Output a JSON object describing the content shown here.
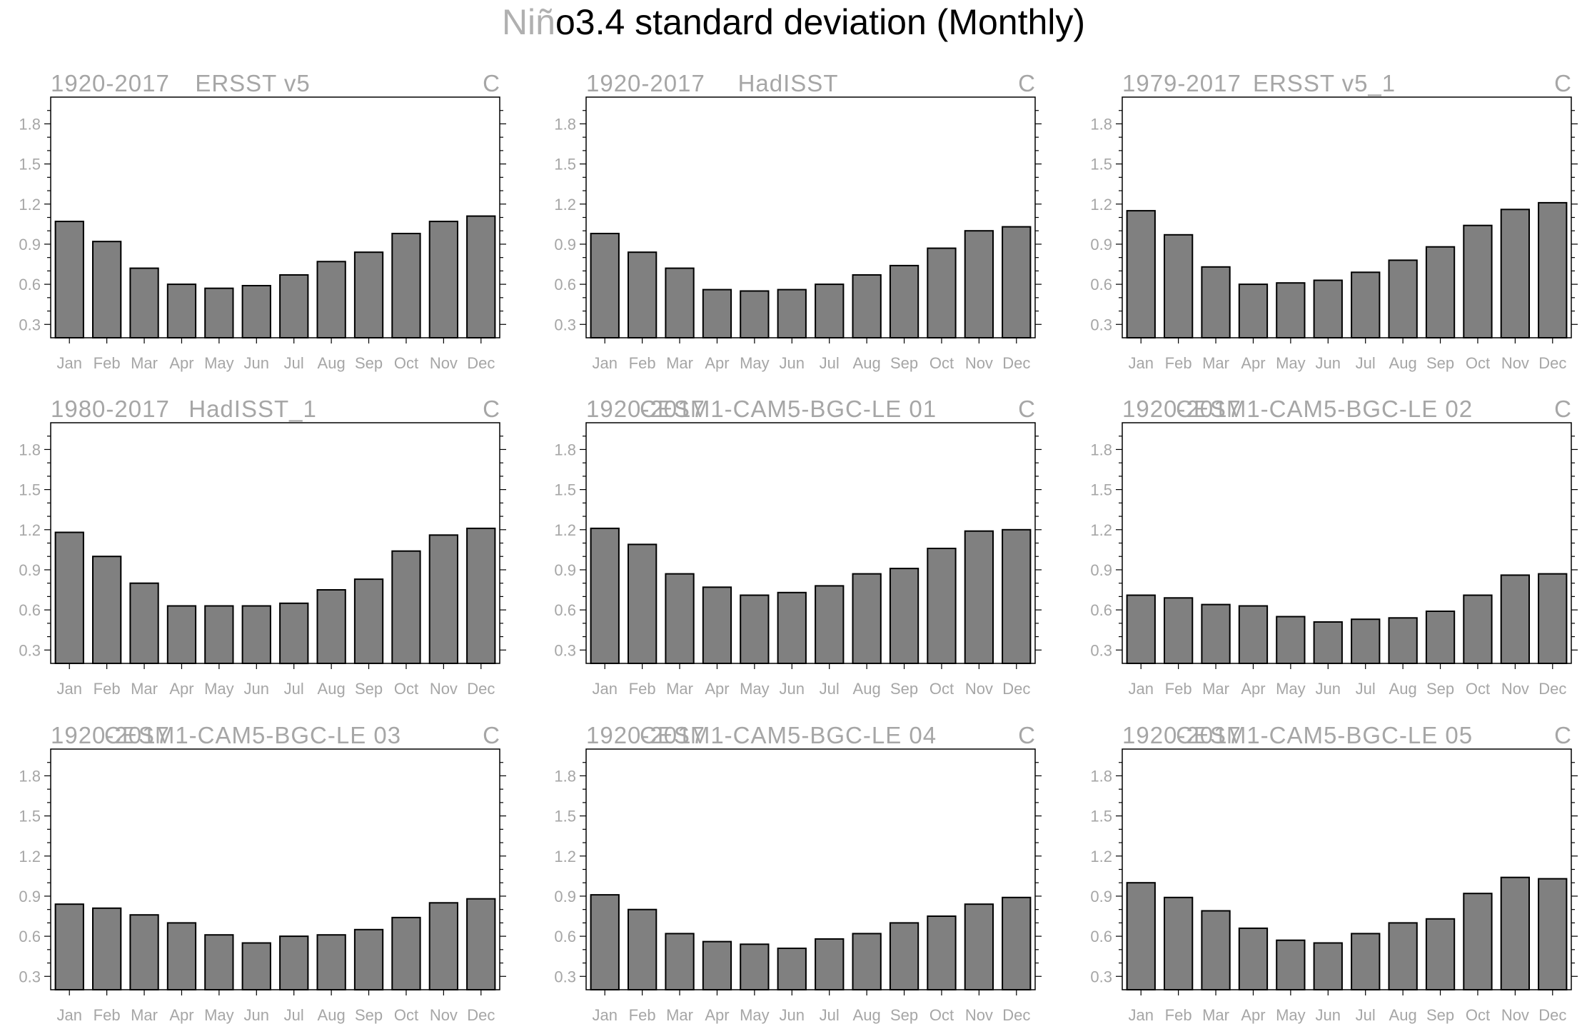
{
  "title": {
    "lead": "Niñ",
    "main": "o3.4 standard deviation (Monthly)"
  },
  "months": [
    "Jan",
    "Feb",
    "Mar",
    "Apr",
    "May",
    "Jun",
    "Jul",
    "Aug",
    "Sep",
    "Oct",
    "Nov",
    "Dec"
  ],
  "yticks": [
    "0.3",
    "0.6",
    "0.9",
    "1.2",
    "1.5",
    "1.8"
  ],
  "colors": {
    "bar": "#808080",
    "frame": "#000000",
    "label": "#a6a6a6"
  },
  "chart_data": [
    {
      "type": "bar",
      "period": "1920-2017",
      "name": "ERSST v5",
      "units": "C",
      "ylim": [
        0.2,
        2.0
      ],
      "categories": [
        "Jan",
        "Feb",
        "Mar",
        "Apr",
        "May",
        "Jun",
        "Jul",
        "Aug",
        "Sep",
        "Oct",
        "Nov",
        "Dec"
      ],
      "values": [
        1.07,
        0.92,
        0.72,
        0.6,
        0.57,
        0.59,
        0.67,
        0.77,
        0.84,
        0.98,
        1.07,
        1.11
      ]
    },
    {
      "type": "bar",
      "period": "1920-2017",
      "name": "HadISST",
      "units": "C",
      "ylim": [
        0.2,
        2.0
      ],
      "categories": [
        "Jan",
        "Feb",
        "Mar",
        "Apr",
        "May",
        "Jun",
        "Jul",
        "Aug",
        "Sep",
        "Oct",
        "Nov",
        "Dec"
      ],
      "values": [
        0.98,
        0.84,
        0.72,
        0.56,
        0.55,
        0.56,
        0.6,
        0.67,
        0.74,
        0.87,
        1.0,
        1.03
      ]
    },
    {
      "type": "bar",
      "period": "1979-2017",
      "name": "ERSST v5_1",
      "units": "C",
      "ylim": [
        0.2,
        2.0
      ],
      "categories": [
        "Jan",
        "Feb",
        "Mar",
        "Apr",
        "May",
        "Jun",
        "Jul",
        "Aug",
        "Sep",
        "Oct",
        "Nov",
        "Dec"
      ],
      "values": [
        1.15,
        0.97,
        0.73,
        0.6,
        0.61,
        0.63,
        0.69,
        0.78,
        0.88,
        1.04,
        1.16,
        1.21
      ]
    },
    {
      "type": "bar",
      "period": "1980-2017",
      "name": "HadISST_1",
      "units": "C",
      "ylim": [
        0.2,
        2.0
      ],
      "categories": [
        "Jan",
        "Feb",
        "Mar",
        "Apr",
        "May",
        "Jun",
        "Jul",
        "Aug",
        "Sep",
        "Oct",
        "Nov",
        "Dec"
      ],
      "values": [
        1.18,
        1.0,
        0.8,
        0.63,
        0.63,
        0.63,
        0.65,
        0.75,
        0.83,
        1.04,
        1.16,
        1.21
      ]
    },
    {
      "type": "bar",
      "period": "1920-2017",
      "name": "CESM1-CAM5-BGC-LE 01",
      "units": "C",
      "ylim": [
        0.2,
        2.0
      ],
      "categories": [
        "Jan",
        "Feb",
        "Mar",
        "Apr",
        "May",
        "Jun",
        "Jul",
        "Aug",
        "Sep",
        "Oct",
        "Nov",
        "Dec"
      ],
      "values": [
        1.21,
        1.09,
        0.87,
        0.77,
        0.71,
        0.73,
        0.78,
        0.87,
        0.91,
        1.06,
        1.19,
        1.2
      ]
    },
    {
      "type": "bar",
      "period": "1920-2017",
      "name": "CESM1-CAM5-BGC-LE 02",
      "units": "C",
      "ylim": [
        0.2,
        2.0
      ],
      "categories": [
        "Jan",
        "Feb",
        "Mar",
        "Apr",
        "May",
        "Jun",
        "Jul",
        "Aug",
        "Sep",
        "Oct",
        "Nov",
        "Dec"
      ],
      "values": [
        0.71,
        0.69,
        0.64,
        0.63,
        0.55,
        0.51,
        0.53,
        0.54,
        0.59,
        0.71,
        0.86,
        0.87
      ]
    },
    {
      "type": "bar",
      "period": "1920-2017",
      "name": "CESM1-CAM5-BGC-LE 03",
      "units": "C",
      "ylim": [
        0.2,
        2.0
      ],
      "categories": [
        "Jan",
        "Feb",
        "Mar",
        "Apr",
        "May",
        "Jun",
        "Jul",
        "Aug",
        "Sep",
        "Oct",
        "Nov",
        "Dec"
      ],
      "values": [
        0.84,
        0.81,
        0.76,
        0.7,
        0.61,
        0.55,
        0.6,
        0.61,
        0.65,
        0.74,
        0.85,
        0.88
      ]
    },
    {
      "type": "bar",
      "period": "1920-2017",
      "name": "CESM1-CAM5-BGC-LE 04",
      "units": "C",
      "ylim": [
        0.2,
        2.0
      ],
      "categories": [
        "Jan",
        "Feb",
        "Mar",
        "Apr",
        "May",
        "Jun",
        "Jul",
        "Aug",
        "Sep",
        "Oct",
        "Nov",
        "Dec"
      ],
      "values": [
        0.91,
        0.8,
        0.62,
        0.56,
        0.54,
        0.51,
        0.58,
        0.62,
        0.7,
        0.75,
        0.84,
        0.89
      ]
    },
    {
      "type": "bar",
      "period": "1920-2017",
      "name": "CESM1-CAM5-BGC-LE 05",
      "units": "C",
      "ylim": [
        0.2,
        2.0
      ],
      "categories": [
        "Jan",
        "Feb",
        "Mar",
        "Apr",
        "May",
        "Jun",
        "Jul",
        "Aug",
        "Sep",
        "Oct",
        "Nov",
        "Dec"
      ],
      "values": [
        1.0,
        0.89,
        0.79,
        0.66,
        0.57,
        0.55,
        0.62,
        0.7,
        0.73,
        0.92,
        1.04,
        1.03
      ]
    }
  ]
}
